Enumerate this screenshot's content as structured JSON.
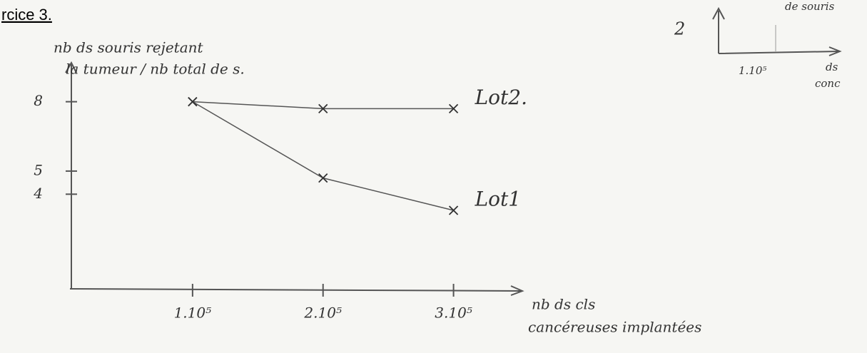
{
  "chart_data": {
    "type": "line",
    "title": "rcice 3.",
    "y_label": [
      "nb ds souris rejetant",
      "la tumeur / nb total de s."
    ],
    "x_label": [
      "nb ds cls",
      "cancéreuses implantées"
    ],
    "x": [
      100000,
      200000,
      300000
    ],
    "xlim": [
      0,
      350000
    ],
    "xticks": [
      {
        "value": 100000,
        "label": "1.10⁵"
      },
      {
        "value": 200000,
        "label": "2.10⁵"
      },
      {
        "value": 300000,
        "label": "3.10⁵"
      }
    ],
    "ylim": [
      0,
      9.5
    ],
    "yticks": [
      4,
      5,
      8
    ],
    "grid": false,
    "series": [
      {
        "name": "Lot2.",
        "color": "#555555",
        "values": [
          8,
          7.7,
          7.7
        ]
      },
      {
        "name": "Lot1",
        "color": "#555555",
        "values": [
          8,
          4.7,
          3.3
        ]
      }
    ],
    "annotations": [
      "2",
      "1.10⁵",
      "ds",
      "conc",
      "de souris"
    ]
  }
}
